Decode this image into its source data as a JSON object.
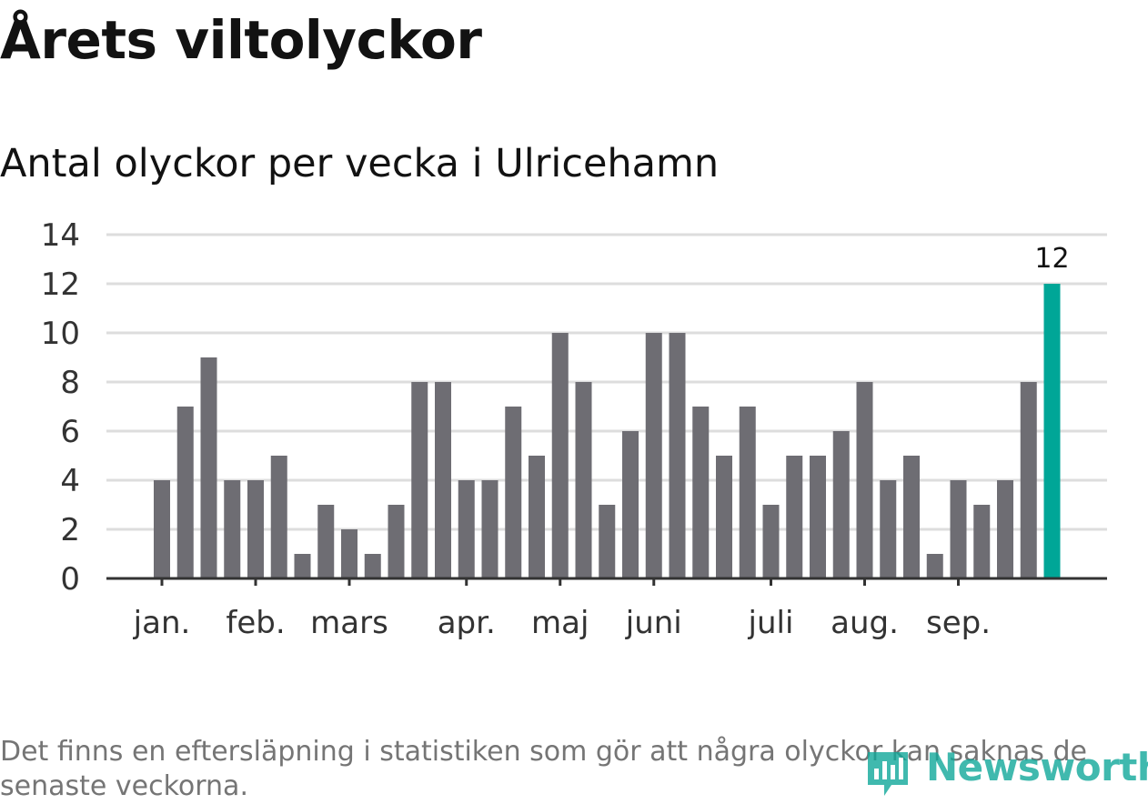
{
  "header": {
    "title": "Årets viltolyckor",
    "subtitle": "Antal olyckor per vecka i Ulricehamn"
  },
  "footer": {
    "note": "Det finns en eftersläpning i statistiken som gör att några olyckor kan saknas de senaste veckorna.",
    "logo_text": "Newsworthy"
  },
  "colors": {
    "bar": "#6e6d73",
    "highlight": "#00a697",
    "grid": "#dddddd",
    "axis": "#333333",
    "text": "#333333"
  },
  "chart_data": {
    "type": "bar",
    "title": "Antal olyckor per vecka i Ulricehamn",
    "xlabel": "",
    "ylabel": "",
    "ylim": [
      0,
      14
    ],
    "yticks": [
      0,
      2,
      4,
      6,
      8,
      10,
      12,
      14
    ],
    "grid": true,
    "values": [
      4,
      7,
      9,
      4,
      4,
      5,
      1,
      3,
      2,
      1,
      3,
      8,
      8,
      4,
      4,
      7,
      5,
      10,
      8,
      3,
      6,
      10,
      10,
      7,
      5,
      7,
      3,
      5,
      5,
      6,
      8,
      4,
      5,
      1,
      4,
      3,
      4,
      8,
      12
    ],
    "month_labels": [
      {
        "label": "jan.",
        "bar_index": 0
      },
      {
        "label": "feb.",
        "bar_index": 4
      },
      {
        "label": "mars",
        "bar_index": 8
      },
      {
        "label": "apr.",
        "bar_index": 13
      },
      {
        "label": "maj",
        "bar_index": 17
      },
      {
        "label": "juni",
        "bar_index": 21
      },
      {
        "label": "juli",
        "bar_index": 26
      },
      {
        "label": "aug.",
        "bar_index": 30
      },
      {
        "label": "sep.",
        "bar_index": 34
      }
    ],
    "highlight_index": 38,
    "data_labels": [
      {
        "bar_index": 38,
        "text": "12"
      }
    ]
  }
}
